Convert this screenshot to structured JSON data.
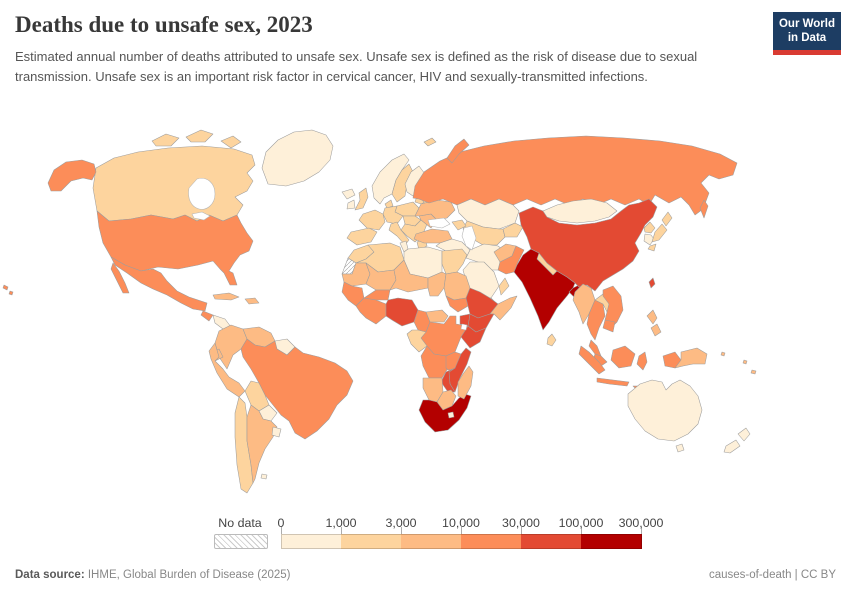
{
  "header": {
    "title": "Deaths due to unsafe sex, 2023",
    "subtitle": "Estimated annual number of deaths attributed to unsafe sex. Unsafe sex is defined as the risk of disease due to sexual transmission. Unsafe sex is an important risk factor in cervical cancer, HIV and sexually-transmitted infections.",
    "logo": {
      "line1": "Our World",
      "line2": "in Data",
      "bg": "#1d3d63",
      "accent": "#d93b32"
    }
  },
  "chart_data": {
    "type": "heatmap",
    "variant": "world-choropleth",
    "title": "Deaths due to unsafe sex, 2023",
    "unit": "deaths",
    "legend": {
      "no_data_label": "No data",
      "bin_edges": [
        "0",
        "1,000",
        "3,000",
        "10,000",
        "30,000",
        "100,000",
        "300,000"
      ],
      "bin_colors": [
        "#FEF0D9",
        "#FDD49E",
        "#FDBB84",
        "#FC8D59",
        "#E34A33",
        "#B30000"
      ]
    },
    "regions": [
      {
        "id": "greenland",
        "name": "Greenland",
        "bin": 1
      },
      {
        "id": "canada",
        "name": "Canada",
        "bin": 2
      },
      {
        "id": "usa",
        "name": "United States",
        "bin": 4
      },
      {
        "id": "mexico",
        "name": "Mexico",
        "bin": 4
      },
      {
        "id": "guatemala",
        "name": "Guatemala",
        "bin": 4
      },
      {
        "id": "honduras-nicaragua",
        "name": "Honduras & Nicaragua",
        "bin": 1
      },
      {
        "id": "costarica-panama",
        "name": "Costa Rica & Panama",
        "bin": 3
      },
      {
        "id": "cuba",
        "name": "Cuba",
        "bin": 3
      },
      {
        "id": "hispaniola",
        "name": "Haiti & Dominican Republic",
        "bin": 3
      },
      {
        "id": "colombia",
        "name": "Colombia",
        "bin": 3
      },
      {
        "id": "venezuela",
        "name": "Venezuela",
        "bin": 3
      },
      {
        "id": "guyanas",
        "name": "Guyana & Suriname",
        "bin": 1
      },
      {
        "id": "ecuador",
        "name": "Ecuador",
        "bin": 3
      },
      {
        "id": "peru",
        "name": "Peru",
        "bin": 3
      },
      {
        "id": "brazil",
        "name": "Brazil",
        "bin": 4
      },
      {
        "id": "bolivia",
        "name": "Bolivia",
        "bin": 2
      },
      {
        "id": "paraguay",
        "name": "Paraguay",
        "bin": 1
      },
      {
        "id": "chile",
        "name": "Chile",
        "bin": 2
      },
      {
        "id": "argentina",
        "name": "Argentina",
        "bin": 3
      },
      {
        "id": "uruguay",
        "name": "Uruguay",
        "bin": 1
      },
      {
        "id": "falklands",
        "name": "Falkland Islands",
        "bin": 1
      },
      {
        "id": "iceland",
        "name": "Iceland",
        "bin": 1
      },
      {
        "id": "uk",
        "name": "United Kingdom",
        "bin": 2
      },
      {
        "id": "ireland",
        "name": "Ireland",
        "bin": 1
      },
      {
        "id": "norway",
        "name": "Norway",
        "bin": 1
      },
      {
        "id": "sweden",
        "name": "Sweden",
        "bin": 2
      },
      {
        "id": "finland",
        "name": "Finland",
        "bin": 1
      },
      {
        "id": "denmark",
        "name": "Denmark",
        "bin": 2
      },
      {
        "id": "baltics",
        "name": "Baltic states",
        "bin": 2
      },
      {
        "id": "belarus",
        "name": "Belarus",
        "bin": 2
      },
      {
        "id": "poland",
        "name": "Poland",
        "bin": 2
      },
      {
        "id": "germany",
        "name": "Germany",
        "bin": 2
      },
      {
        "id": "france",
        "name": "France",
        "bin": 2
      },
      {
        "id": "iberia",
        "name": "Spain & Portugal",
        "bin": 2
      },
      {
        "id": "italy",
        "name": "Italy",
        "bin": 2
      },
      {
        "id": "central-europe",
        "name": "Central Europe",
        "bin": 2
      },
      {
        "id": "balkans",
        "name": "Balkans",
        "bin": 2
      },
      {
        "id": "romania",
        "name": "Romania",
        "bin": 3
      },
      {
        "id": "ukraine",
        "name": "Ukraine",
        "bin": 3
      },
      {
        "id": "greece",
        "name": "Greece",
        "bin": 2
      },
      {
        "id": "svalbard",
        "name": "Svalbard",
        "bin": 2
      },
      {
        "id": "russia",
        "name": "Russia",
        "bin": 4
      },
      {
        "id": "kazakhstan",
        "name": "Kazakhstan",
        "bin": 1
      },
      {
        "id": "uzbek-turkmen",
        "name": "Uzbekistan & Turkmenistan",
        "bin": 2
      },
      {
        "id": "kyrgyz-tajik",
        "name": "Kyrgyzstan & Tajikistan",
        "bin": 2
      },
      {
        "id": "caucasus",
        "name": "Caucasus",
        "bin": 2
      },
      {
        "id": "turkey",
        "name": "Turkey",
        "bin": 3
      },
      {
        "id": "iraq-levant",
        "name": "Iraq & Levant",
        "bin": 1
      },
      {
        "id": "iran",
        "name": "Iran",
        "bin": 1
      },
      {
        "id": "saudi",
        "name": "Saudi Arabia",
        "bin": 1
      },
      {
        "id": "yemen",
        "name": "Yemen",
        "bin": 2
      },
      {
        "id": "oman",
        "name": "Oman",
        "bin": 2
      },
      {
        "id": "afghanistan",
        "name": "Afghanistan",
        "bin": 3
      },
      {
        "id": "pakistan",
        "name": "Pakistan",
        "bin": 4
      },
      {
        "id": "india",
        "name": "India",
        "bin": 6
      },
      {
        "id": "nepal",
        "name": "Nepal",
        "bin": 2
      },
      {
        "id": "bangladesh",
        "name": "Bangladesh",
        "bin": 6
      },
      {
        "id": "srilanka",
        "name": "Sri Lanka",
        "bin": 2
      },
      {
        "id": "myanmar",
        "name": "Myanmar",
        "bin": 3
      },
      {
        "id": "thailand",
        "name": "Thailand",
        "bin": 4
      },
      {
        "id": "laos",
        "name": "Laos",
        "bin": 2
      },
      {
        "id": "vietnam",
        "name": "Vietnam",
        "bin": 4
      },
      {
        "id": "cambodia",
        "name": "Cambodia",
        "bin": 4
      },
      {
        "id": "malaysia",
        "name": "Malaysia",
        "bin": 4
      },
      {
        "id": "indonesia",
        "name": "Indonesia",
        "bin": 4
      },
      {
        "id": "png",
        "name": "Papua New Guinea",
        "bin": 3
      },
      {
        "id": "philippines",
        "name": "Philippines",
        "bin": 3
      },
      {
        "id": "taiwan",
        "name": "Taiwan",
        "bin": 5
      },
      {
        "id": "china",
        "name": "China",
        "bin": 5
      },
      {
        "id": "mongolia",
        "name": "Mongolia",
        "bin": 1
      },
      {
        "id": "north-korea",
        "name": "North Korea",
        "bin": 2
      },
      {
        "id": "south-korea",
        "name": "South Korea",
        "bin": 1
      },
      {
        "id": "japan",
        "name": "Japan",
        "bin": 2
      },
      {
        "id": "morocco",
        "name": "Morocco",
        "bin": 2
      },
      {
        "id": "wsahara",
        "name": "Western Sahara",
        "bin": "nodata"
      },
      {
        "id": "algeria",
        "name": "Algeria",
        "bin": 2
      },
      {
        "id": "tunisia",
        "name": "Tunisia",
        "bin": 1
      },
      {
        "id": "libya",
        "name": "Libya",
        "bin": 1
      },
      {
        "id": "egypt",
        "name": "Egypt",
        "bin": 2
      },
      {
        "id": "mauritania",
        "name": "Mauritania",
        "bin": 3
      },
      {
        "id": "mali",
        "name": "Mali",
        "bin": 3
      },
      {
        "id": "niger",
        "name": "Niger",
        "bin": 3
      },
      {
        "id": "chad",
        "name": "Chad",
        "bin": 3
      },
      {
        "id": "sudan",
        "name": "Sudan",
        "bin": 3
      },
      {
        "id": "senegal-guinea",
        "name": "Senegal & Guinea",
        "bin": 4
      },
      {
        "id": "burkina",
        "name": "Burkina Faso",
        "bin": 4
      },
      {
        "id": "ivorycoast-ghana",
        "name": "Côte d'Ivoire & Ghana",
        "bin": 4
      },
      {
        "id": "nigeria",
        "name": "Nigeria",
        "bin": 5
      },
      {
        "id": "cameroon",
        "name": "Cameroon",
        "bin": 4
      },
      {
        "id": "car",
        "name": "Central African Republic",
        "bin": 3
      },
      {
        "id": "south-sudan",
        "name": "South Sudan",
        "bin": 4
      },
      {
        "id": "ethiopia",
        "name": "Ethiopia",
        "bin": 5
      },
      {
        "id": "somalia",
        "name": "Somalia",
        "bin": 3
      },
      {
        "id": "kenya",
        "name": "Kenya",
        "bin": 5
      },
      {
        "id": "uganda",
        "name": "Uganda",
        "bin": 5
      },
      {
        "id": "drc",
        "name": "Democratic Republic of Congo",
        "bin": 4
      },
      {
        "id": "tanzania",
        "name": "Tanzania",
        "bin": 5
      },
      {
        "id": "gabon-congo",
        "name": "Gabon & Congo",
        "bin": 2
      },
      {
        "id": "angola",
        "name": "Angola",
        "bin": 4
      },
      {
        "id": "zambia",
        "name": "Zambia",
        "bin": 4
      },
      {
        "id": "mozambique",
        "name": "Mozambique",
        "bin": 5
      },
      {
        "id": "zimbabwe",
        "name": "Zimbabwe",
        "bin": 5
      },
      {
        "id": "namibia",
        "name": "Namibia",
        "bin": 3
      },
      {
        "id": "botswana",
        "name": "Botswana",
        "bin": 3
      },
      {
        "id": "south-africa",
        "name": "South Africa",
        "bin": 6
      },
      {
        "id": "lesotho",
        "name": "Lesotho",
        "bin": 1
      },
      {
        "id": "madagascar",
        "name": "Madagascar",
        "bin": 3
      },
      {
        "id": "australia",
        "name": "Australia",
        "bin": 1
      },
      {
        "id": "new-zealand",
        "name": "New Zealand",
        "bin": 1
      },
      {
        "id": "fiji",
        "name": "Fiji",
        "bin": 3
      },
      {
        "id": "new-caledonia",
        "name": "New Caledonia",
        "bin": 3
      },
      {
        "id": "solomons",
        "name": "Solomon Islands",
        "bin": 3
      }
    ]
  },
  "footer": {
    "source_label": "Data source:",
    "source_value": " IHME, Global Burden of Disease (2025)",
    "right": "causes-of-death | CC BY"
  }
}
